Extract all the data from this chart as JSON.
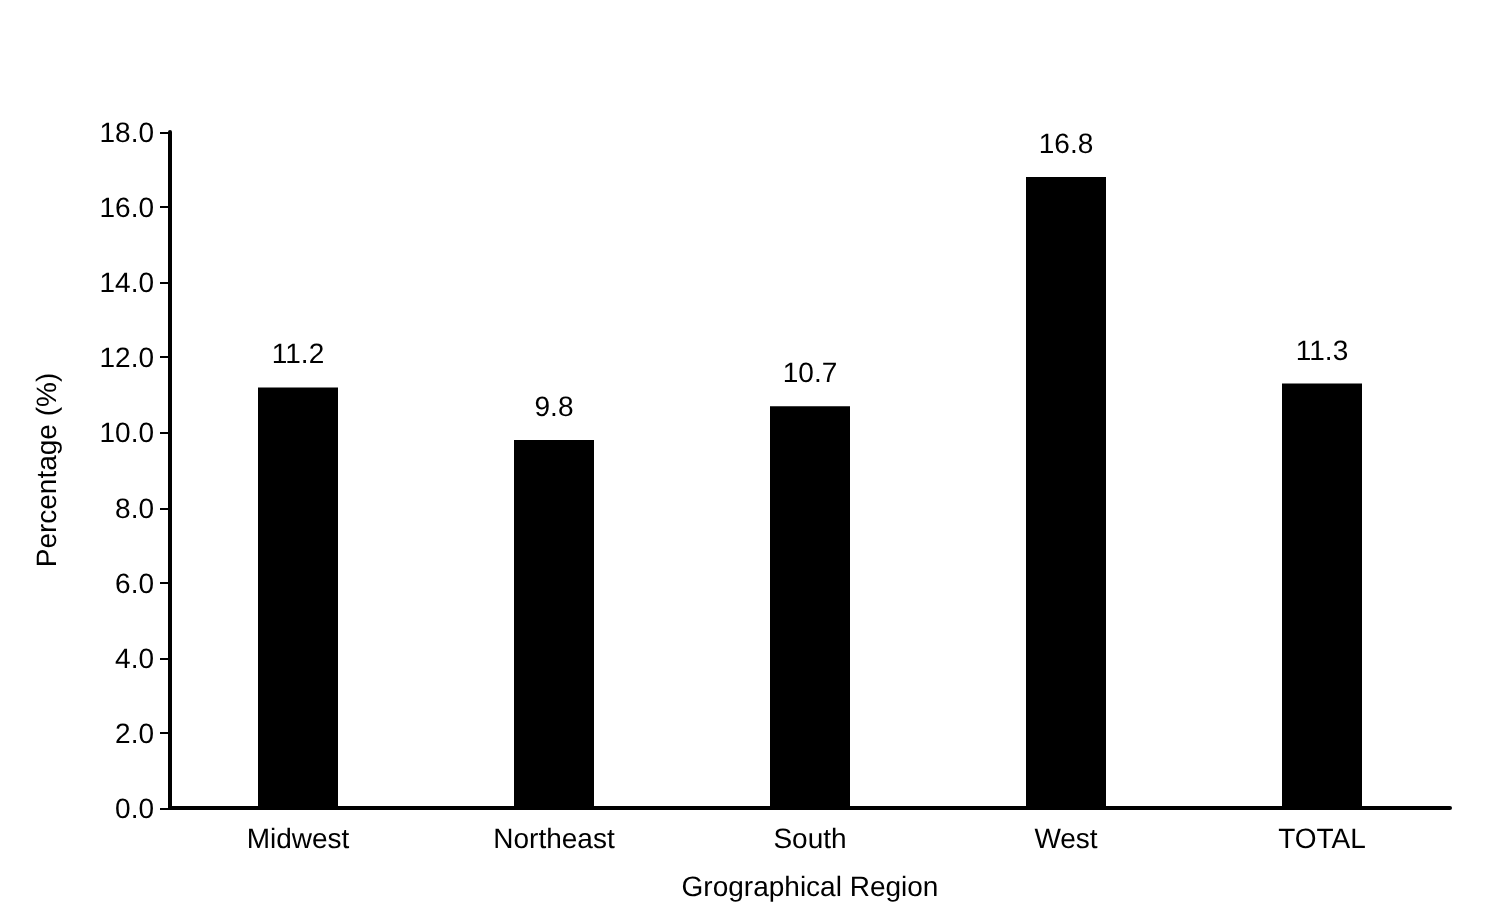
{
  "chart_data": {
    "type": "bar",
    "xlabel": "Grographical Region",
    "ylabel": "Percentage (%)",
    "categories": [
      "Midwest",
      "Northeast",
      "South",
      "West",
      "TOTAL"
    ],
    "values": [
      11.2,
      9.8,
      10.7,
      16.8,
      11.3
    ],
    "color": "#000000",
    "ylim": [
      0,
      18
    ],
    "yticks": [
      {
        "value": 0,
        "label": "0.0"
      },
      {
        "value": 2,
        "label": "2.0"
      },
      {
        "value": 4,
        "label": "4.0"
      },
      {
        "value": 6,
        "label": "6.0"
      },
      {
        "value": 8,
        "label": "8.0"
      },
      {
        "value": 10,
        "label": "10.0"
      },
      {
        "value": 12,
        "label": "12.0"
      },
      {
        "value": 14,
        "label": "14.0"
      },
      {
        "value": 16,
        "label": "16.0"
      },
      {
        "value": 18,
        "label": "18.0"
      }
    ],
    "data_labels": true,
    "grid": false
  }
}
